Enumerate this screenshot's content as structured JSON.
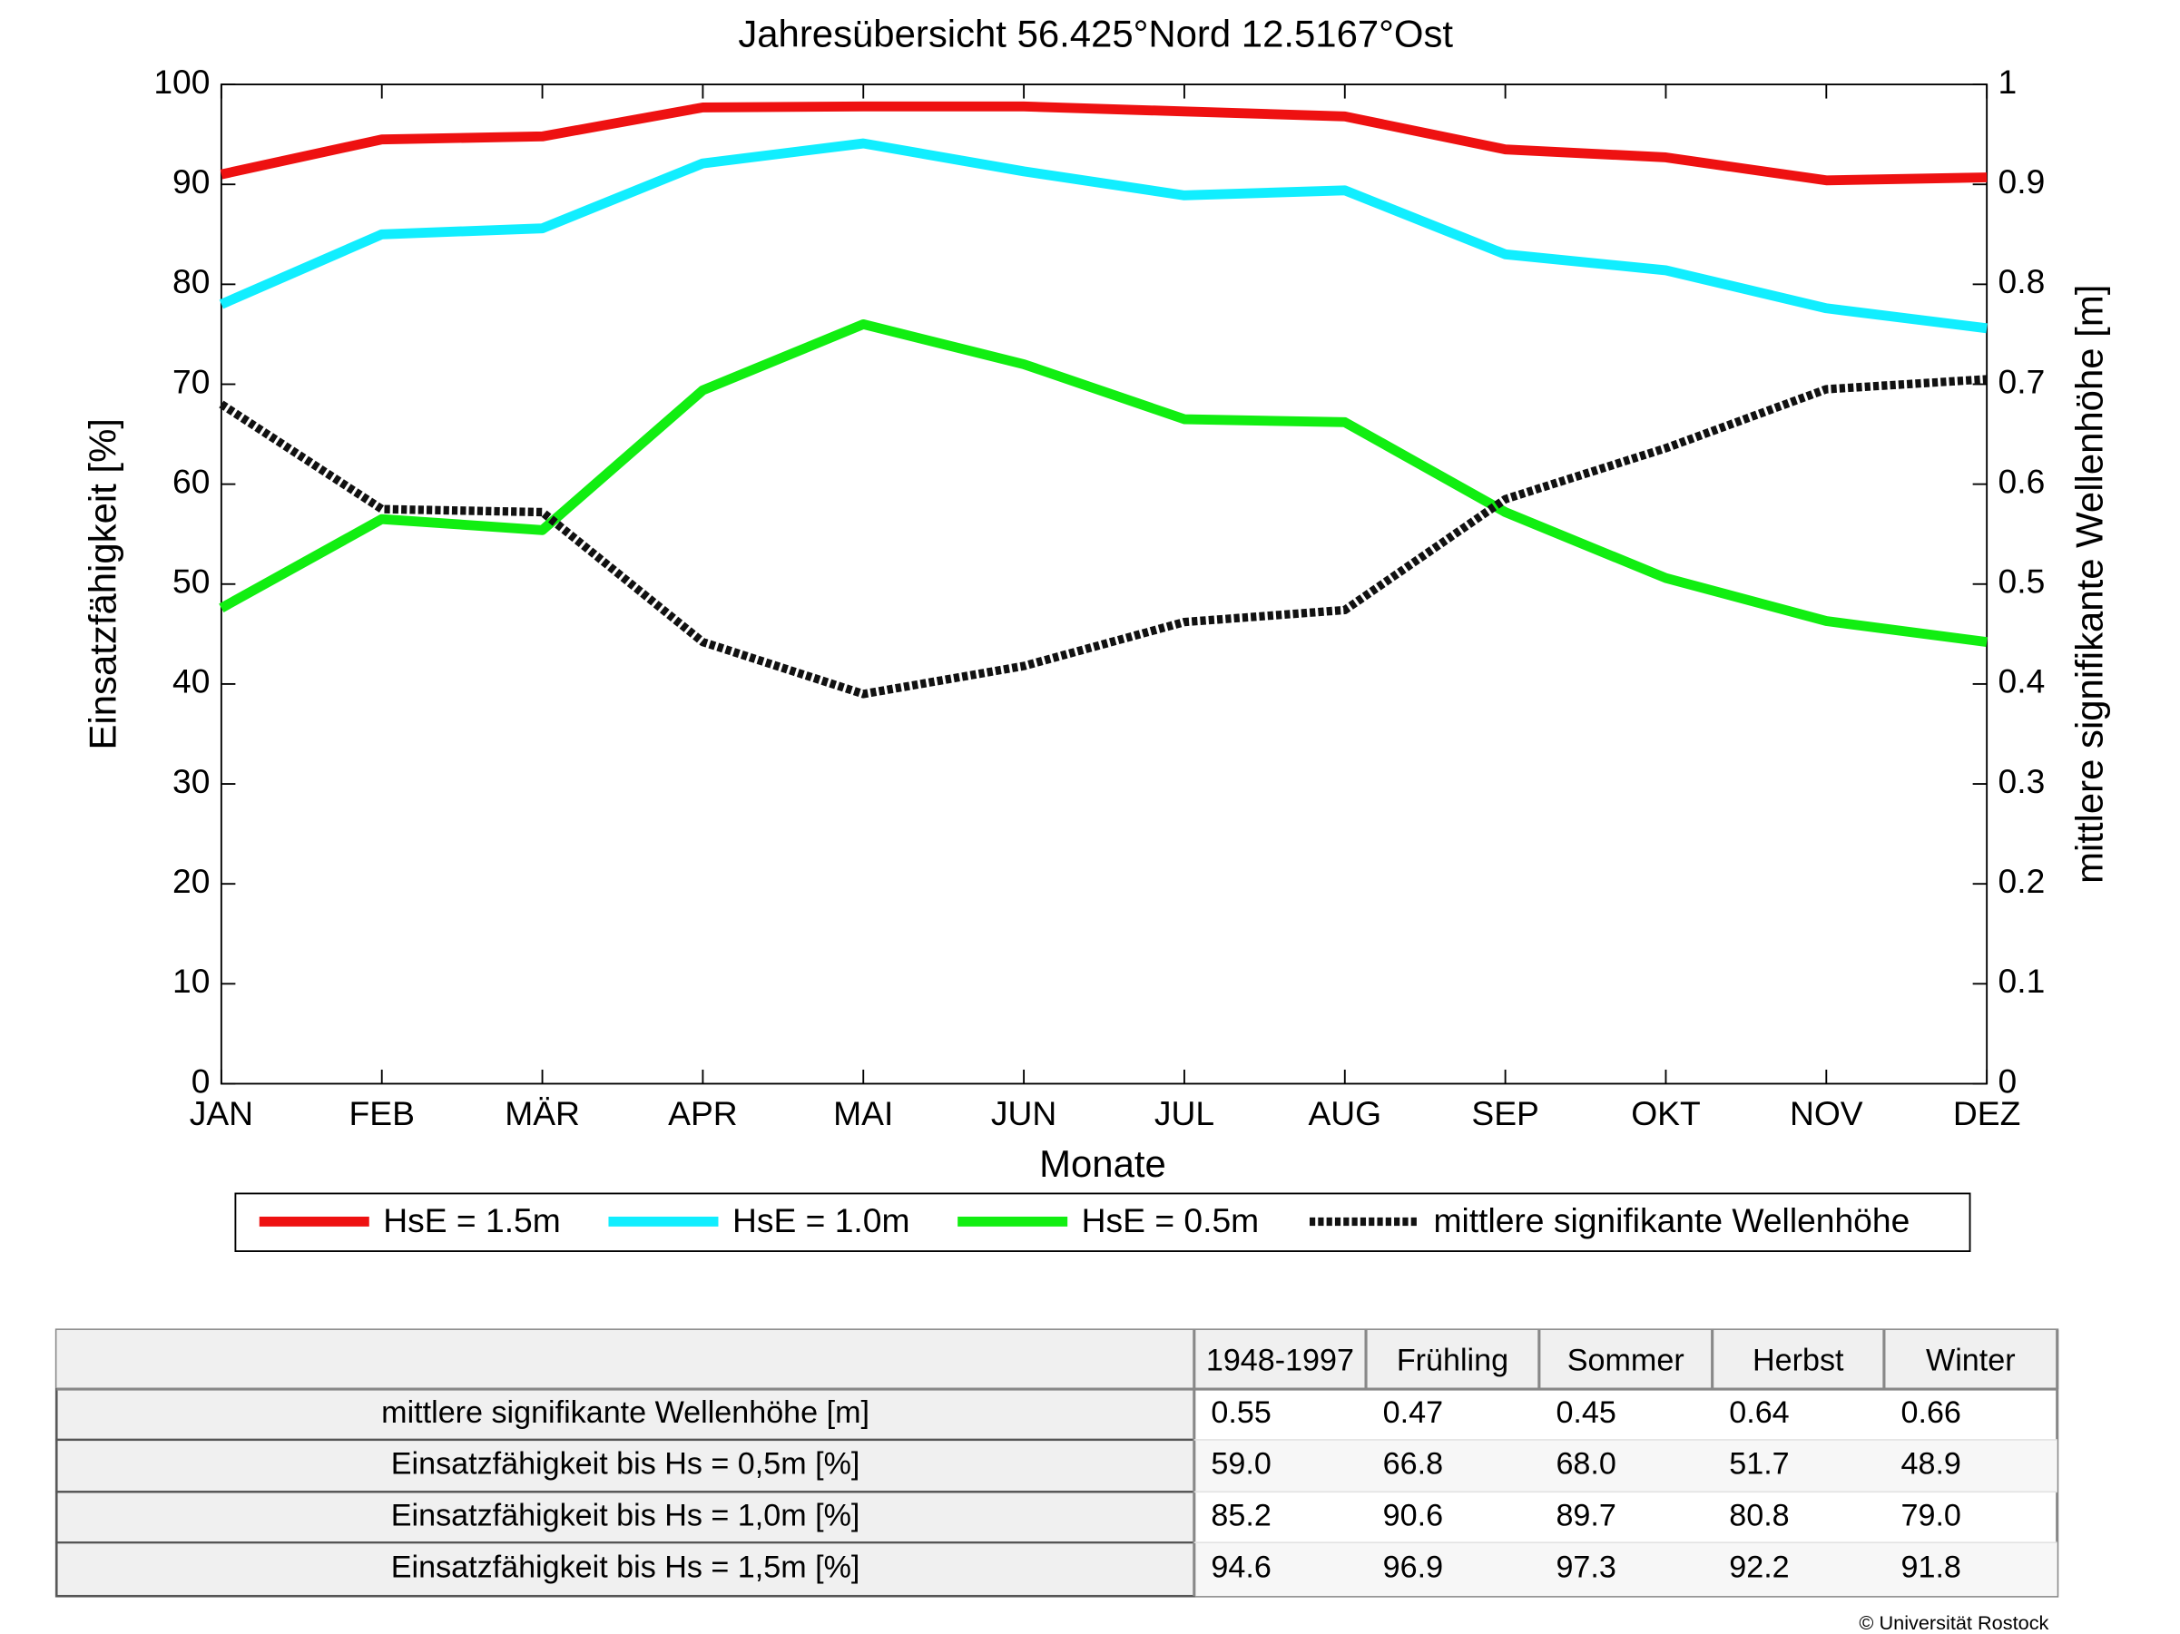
{
  "chart_data": {
    "type": "line",
    "title": "Jahresübersicht  56.425°Nord  12.5167°Ost",
    "x_label": "Monate",
    "y_label": "Einsatzfähigkeit [%]",
    "y2_label": "mittlere signifikante Wellenhöhe [m]",
    "categories": [
      "JAN",
      "FEB",
      "MÄR",
      "APR",
      "MAI",
      "JUN",
      "JUL",
      "AUG",
      "SEP",
      "OKT",
      "NOV",
      "DEZ"
    ],
    "series": [
      {
        "name": "HsE = 1.5m",
        "color": "#ee1111",
        "values": [
          91,
          94.5,
          94.8,
          97.7,
          97.8,
          97.8,
          97.3,
          96.8,
          93.5,
          92.7,
          90.4,
          90.7
        ]
      },
      {
        "name": "HsE = 1.0m",
        "color": "#11eeff",
        "values": [
          78,
          85,
          85.6,
          92.1,
          94.1,
          91.3,
          88.9,
          89.4,
          83,
          81.4,
          77.6,
          75.6
        ]
      },
      {
        "name": "HsE = 0.5m",
        "color": "#11ee11",
        "values": [
          47.6,
          56.5,
          55.4,
          69.4,
          76,
          72,
          66.5,
          66.2,
          57.2,
          50.6,
          46.3,
          44.2
        ]
      },
      {
        "name": "mittlere signifikante Wellenhöhe",
        "color": "#111111",
        "axis": "y2",
        "dashed": true,
        "values": [
          0.68,
          0.575,
          0.572,
          0.442,
          0.39,
          0.418,
          0.462,
          0.474,
          0.585,
          0.636,
          0.695,
          0.705
        ]
      }
    ],
    "ylim": [
      0,
      100
    ],
    "yticks": [
      0,
      10,
      20,
      30,
      40,
      50,
      60,
      70,
      80,
      90,
      100
    ],
    "y2lim": [
      0,
      1
    ],
    "y2ticks": [
      0,
      0.1,
      0.2,
      0.3,
      0.4,
      0.5,
      0.6,
      0.7,
      0.8,
      0.9,
      1
    ],
    "grid": false,
    "legend": "bottom"
  },
  "table": {
    "columns": [
      "1948-1997",
      "Frühling",
      "Sommer",
      "Herbst",
      "Winter"
    ],
    "rows": [
      {
        "label": "mittlere signifikante Wellenhöhe [m]",
        "cells": [
          "0.55",
          "0.47",
          "0.45",
          "0.64",
          "0.66"
        ]
      },
      {
        "label": "Einsatzfähigkeit bis Hs = 0,5m [%]",
        "cells": [
          "59.0",
          "66.8",
          "68.0",
          "51.7",
          "48.9"
        ]
      },
      {
        "label": "Einsatzfähigkeit bis Hs = 1,0m [%]",
        "cells": [
          "85.2",
          "90.6",
          "89.7",
          "80.8",
          "79.0"
        ]
      },
      {
        "label": "Einsatzfähigkeit bis Hs = 1,5m [%]",
        "cells": [
          "94.6",
          "96.9",
          "97.3",
          "92.2",
          "91.8"
        ]
      }
    ]
  },
  "credit": "© Universität Rostock"
}
